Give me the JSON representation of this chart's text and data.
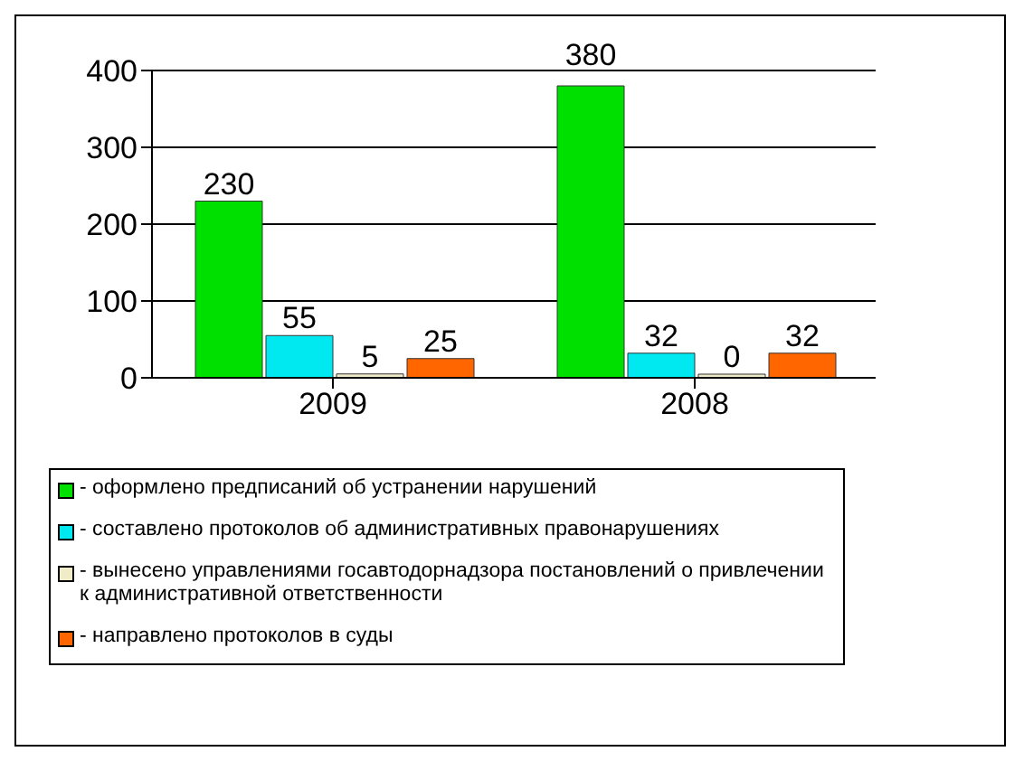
{
  "chart_data": {
    "type": "bar",
    "categories": [
      "2009",
      "2008"
    ],
    "series": [
      {
        "name": "- оформлено предписаний об устранении нарушений",
        "color": "#00e000",
        "values": [
          230,
          380
        ]
      },
      {
        "name": "- составлено протоколов об административных правонарушениях",
        "color": "#00e8f0",
        "values": [
          55,
          32
        ]
      },
      {
        "name": "- вынесено управлениями госавтодорнадзора  постановлений о привлечении к административной ответственности",
        "color": "#f0ecc8",
        "values": [
          5,
          0
        ]
      },
      {
        "name": "- направлено протоколов в суды",
        "color": "#ff6600",
        "values": [
          25,
          32
        ]
      }
    ],
    "ylim": [
      0,
      400
    ],
    "yticks": [
      0,
      100,
      200,
      300,
      400
    ],
    "grid": "y",
    "legend": "bottom",
    "data_labels": true
  }
}
